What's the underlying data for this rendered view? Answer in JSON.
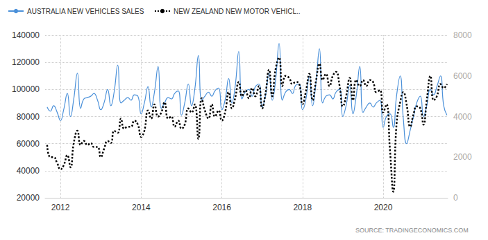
{
  "chart_data": {
    "type": "line",
    "x": [
      2011.67,
      2011.75,
      2011.83,
      2011.92,
      2012.0,
      2012.08,
      2012.17,
      2012.25,
      2012.33,
      2012.42,
      2012.5,
      2012.58,
      2012.67,
      2012.75,
      2012.83,
      2012.92,
      2013.0,
      2013.08,
      2013.17,
      2013.25,
      2013.33,
      2013.42,
      2013.5,
      2013.58,
      2013.67,
      2013.75,
      2013.83,
      2013.92,
      2014.0,
      2014.08,
      2014.17,
      2014.25,
      2014.33,
      2014.42,
      2014.5,
      2014.58,
      2014.67,
      2014.75,
      2014.83,
      2014.92,
      2015.0,
      2015.08,
      2015.17,
      2015.25,
      2015.33,
      2015.42,
      2015.5,
      2015.58,
      2015.67,
      2015.75,
      2015.83,
      2015.92,
      2016.0,
      2016.08,
      2016.17,
      2016.25,
      2016.33,
      2016.42,
      2016.5,
      2016.58,
      2016.67,
      2016.75,
      2016.83,
      2016.92,
      2017.0,
      2017.08,
      2017.17,
      2017.25,
      2017.33,
      2017.42,
      2017.5,
      2017.58,
      2017.67,
      2017.75,
      2017.83,
      2017.92,
      2018.0,
      2018.08,
      2018.17,
      2018.25,
      2018.33,
      2018.42,
      2018.5,
      2018.58,
      2018.67,
      2018.75,
      2018.83,
      2018.92,
      2019.0,
      2019.08,
      2019.17,
      2019.25,
      2019.33,
      2019.42,
      2019.5,
      2019.58,
      2019.67,
      2019.75,
      2019.83,
      2019.92,
      2020.0,
      2020.08,
      2020.17,
      2020.25,
      2020.33,
      2020.42,
      2020.5,
      2020.58,
      2020.67,
      2020.75,
      2020.83,
      2020.92,
      2021.0,
      2021.08,
      2021.17,
      2021.25,
      2021.33,
      2021.42,
      2021.5,
      2021.58
    ],
    "xlim": [
      2011.62,
      2021.6
    ],
    "xticks": [
      2012,
      2014,
      2016,
      2018,
      2020
    ],
    "ylim": [
      20000,
      140000
    ],
    "yticks": [
      20000,
      40000,
      60000,
      80000,
      100000,
      120000,
      140000
    ],
    "y2lim": [
      0,
      8000
    ],
    "y2ticks": [
      0,
      2000,
      4000,
      6000,
      8000
    ],
    "grid": true,
    "legend": "top-left",
    "source": "SOURCE: TRADINGECONOMICS.COM",
    "series": [
      {
        "name": "AUSTRALIA NEW VEHICLES SALES",
        "color": "#4a90d9",
        "line_style": "solid",
        "values": [
          87000,
          84000,
          88000,
          83000,
          77000,
          85000,
          97000,
          80000,
          93000,
          112000,
          86000,
          93000,
          94000,
          95000,
          97000,
          92000,
          85000,
          90000,
          100000,
          88000,
          98000,
          118000,
          90000,
          92000,
          94000,
          92000,
          96000,
          95000,
          82000,
          90000,
          102000,
          87000,
          98000,
          117000,
          86000,
          90000,
          94000,
          93000,
          97000,
          99000,
          81000,
          90000,
          104000,
          88000,
          100000,
          125000,
          92000,
          95000,
          98000,
          95000,
          99000,
          101000,
          85000,
          92000,
          108000,
          90000,
          102000,
          128000,
          93000,
          98000,
          100000,
          95000,
          102000,
          104000,
          87000,
          95000,
          112000,
          92000,
          106000,
          134000,
          92000,
          98000,
          100000,
          97000,
          103000,
          104000,
          85000,
          92000,
          110000,
          88000,
          104000,
          130000,
          90000,
          95000,
          96000,
          93000,
          98000,
          100000,
          80000,
          88000,
          103000,
          82000,
          95000,
          117000,
          83000,
          87000,
          90000,
          87000,
          90000,
          92000,
          72000,
          80000,
          82000,
          72000,
          95000,
          110000,
          78000,
          60000,
          70000,
          80000,
          90000,
          95000,
          80000,
          88000,
          100000,
          96000,
          102000,
          110000,
          88000,
          81000
        ]
      },
      {
        "name": "NEW ZEALAND NEW MOTOR VEHICL..",
        "color": "#000000",
        "line_style": "dotted",
        "axis": "y2",
        "values": [
          2600,
          2000,
          2000,
          1700,
          1400,
          1600,
          2100,
          1500,
          2700,
          3300,
          2600,
          2800,
          2600,
          2700,
          2500,
          2500,
          2000,
          2400,
          2800,
          2700,
          3300,
          3200,
          3900,
          3400,
          3500,
          3500,
          3800,
          3600,
          3000,
          3300,
          4300,
          3900,
          4600,
          4000,
          4200,
          4700,
          3900,
          4000,
          3500,
          3800,
          3400,
          3600,
          4400,
          4200,
          4600,
          2900,
          4900,
          4300,
          3900,
          4600,
          4000,
          4300,
          3800,
          4200,
          5200,
          4400,
          4900,
          5700,
          5000,
          5300,
          4900,
          5400,
          5000,
          5500,
          4400,
          5100,
          6300,
          5000,
          6300,
          6900,
          5500,
          6000,
          5900,
          5600,
          5700,
          5600,
          4600,
          5200,
          6100,
          4800,
          5700,
          6600,
          5800,
          6100,
          5500,
          6000,
          6200,
          5500,
          4500,
          5000,
          5900,
          4800,
          5800,
          5500,
          5800,
          5500,
          5800,
          5700,
          5200,
          5300,
          4200,
          4600,
          2300,
          300,
          3600,
          4700,
          5200,
          4600,
          3500,
          4100,
          4500,
          4400,
          3600,
          4800,
          6000,
          4800,
          5000,
          5600,
          5400,
          5600
        ]
      }
    ]
  }
}
